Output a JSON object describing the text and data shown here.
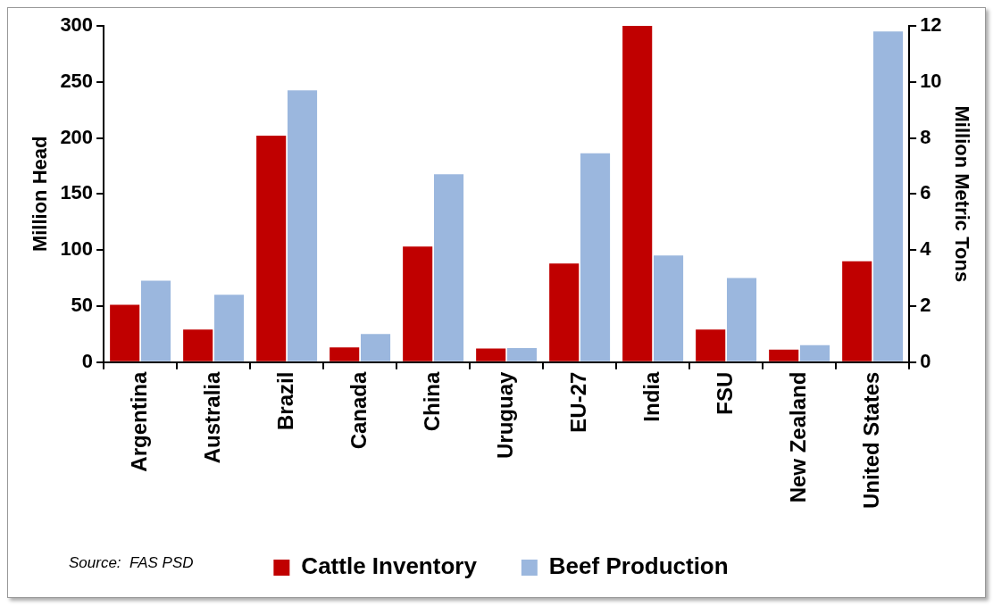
{
  "chart_data": {
    "type": "bar",
    "categories": [
      "Argentina",
      "Australia",
      "Brazil",
      "Canada",
      "China",
      "Uruguay",
      "EU-27",
      "India",
      "FSU",
      "New Zealand",
      "United States"
    ],
    "series": [
      {
        "name": "Cattle Inventory",
        "color": "#c00000",
        "values": [
          51,
          29,
          202,
          13,
          103,
          12,
          88,
          300,
          29,
          11,
          90
        ]
      },
      {
        "name": "Beef Production",
        "color": "#9bb7de",
        "axis": "y2",
        "values": [
          2.9,
          2.4,
          9.7,
          1.0,
          6.7,
          0.5,
          7.45,
          3.8,
          3.0,
          0.6,
          11.8
        ]
      }
    ],
    "ylabel": "Million Head",
    "y2label": "Million Metric Tons",
    "ylim": [
      0,
      300
    ],
    "yticks": [
      0,
      50,
      100,
      150,
      200,
      250,
      300
    ],
    "y2lim": [
      0,
      12
    ],
    "y2ticks": [
      0,
      2,
      4,
      6,
      8,
      10,
      12
    ],
    "annotations": [
      "Source:  FAS PSD"
    ],
    "legend": "bottom",
    "grid": false
  }
}
